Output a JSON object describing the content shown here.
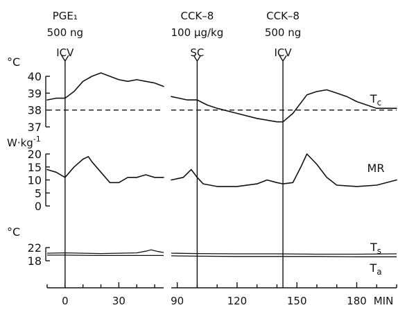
{
  "chart_data": {
    "type": "line",
    "x_unit": "MIN",
    "x_ticks": [
      0,
      30,
      90,
      120,
      150,
      180
    ],
    "x_segments": [
      [
        -10,
        55
      ],
      [
        87,
        200
      ]
    ],
    "events": [
      {
        "x": 0,
        "lines": [
          "PGE₁",
          "500 ng"
        ],
        "route": "ICV"
      },
      {
        "x": 100,
        "lines": [
          "CCK–8",
          "100 µg/kg"
        ],
        "route": "SC"
      },
      {
        "x": 143,
        "lines": [
          "CCK–8",
          "500 ng"
        ],
        "route": "ICV"
      }
    ],
    "panels": [
      {
        "id": "tc",
        "unit": "°C",
        "ylim": [
          37,
          40
        ],
        "ticks": [
          37,
          38,
          39,
          40
        ],
        "reference_line": 38,
        "series": [
          {
            "name": "Tc",
            "segments": [
              {
                "x": [
                  -10,
                  -5,
                  0,
                  5,
                  10,
                  15,
                  20,
                  25,
                  30,
                  35,
                  40,
                  45,
                  50,
                  55
                ],
                "y": [
                  38.6,
                  38.7,
                  38.7,
                  39.1,
                  39.7,
                  40.0,
                  40.2,
                  40.0,
                  39.8,
                  39.7,
                  39.8,
                  39.7,
                  39.6,
                  39.4
                ]
              },
              {
                "x": [
                  87,
                  95,
                  100,
                  105,
                  110,
                  120,
                  130,
                  140,
                  143,
                  148,
                  155,
                  160,
                  165,
                  170,
                  175,
                  180,
                  190,
                  200
                ],
                "y": [
                  38.8,
                  38.6,
                  38.6,
                  38.3,
                  38.1,
                  37.8,
                  37.5,
                  37.3,
                  37.3,
                  37.8,
                  38.9,
                  39.1,
                  39.2,
                  39.0,
                  38.8,
                  38.5,
                  38.1,
                  38.1
                ]
              }
            ]
          }
        ]
      },
      {
        "id": "mr",
        "unit": "W·kg⁻¹",
        "ylim": [
          0,
          20
        ],
        "ticks": [
          0,
          5,
          10,
          15,
          20
        ],
        "series": [
          {
            "name": "MR",
            "segments": [
              {
                "x": [
                  -10,
                  -5,
                  0,
                  5,
                  10,
                  13,
                  15,
                  20,
                  25,
                  30,
                  35,
                  40,
                  45,
                  50,
                  55
                ],
                "y": [
                  14,
                  13,
                  11,
                  15,
                  18,
                  19,
                  17,
                  13,
                  9,
                  9,
                  11,
                  11,
                  12,
                  11,
                  11
                ]
              },
              {
                "x": [
                  87,
                  93,
                  97,
                  100,
                  103,
                  110,
                  120,
                  130,
                  135,
                  140,
                  143,
                  148,
                  152,
                  155,
                  160,
                  165,
                  170,
                  180,
                  190,
                  200
                ],
                "y": [
                  10,
                  11,
                  14,
                  11,
                  8.5,
                  7.5,
                  7.5,
                  8.5,
                  10,
                  9,
                  8.5,
                  9,
                  15,
                  20,
                  16,
                  11,
                  8,
                  7.5,
                  8,
                  10
                ]
              }
            ]
          }
        ]
      },
      {
        "id": "temps",
        "unit": "°C",
        "ylim": [
          18,
          22
        ],
        "ticks": [
          18,
          22
        ],
        "series": [
          {
            "name": "Ts",
            "segments": [
              {
                "x": [
                  -10,
                  0,
                  10,
                  20,
                  30,
                  40,
                  45,
                  48,
                  52,
                  55
                ],
                "y": [
                  20.3,
                  20.4,
                  20.3,
                  20.2,
                  20.3,
                  20.4,
                  20.9,
                  21.3,
                  20.8,
                  20.5
                ]
              },
              {
                "x": [
                  87,
                  100,
                  120,
                  140,
                  160,
                  180,
                  200
                ],
                "y": [
                  20.3,
                  20.2,
                  20.1,
                  20.1,
                  20.0,
                  20.0,
                  20.1
                ]
              }
            ]
          },
          {
            "name": "Ta",
            "segments": [
              {
                "x": [
                  -10,
                  0,
                  20,
                  40,
                  55
                ],
                "y": [
                  19.7,
                  19.7,
                  19.6,
                  19.6,
                  19.6
                ]
              },
              {
                "x": [
                  87,
                  100,
                  120,
                  140,
                  160,
                  180,
                  200
                ],
                "y": [
                  19.5,
                  19.4,
                  19.3,
                  19.3,
                  19.3,
                  19.2,
                  19.2
                ]
              }
            ]
          }
        ]
      }
    ]
  }
}
